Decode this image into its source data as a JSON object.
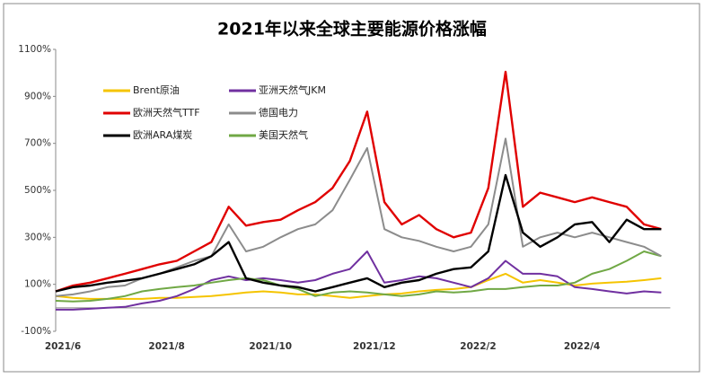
{
  "chart_data": {
    "type": "line",
    "title": "2021年以来全球主要能源价格涨幅",
    "categories": [
      "2021/6",
      null,
      null,
      null,
      null,
      null,
      "2021/8",
      null,
      null,
      null,
      null,
      null,
      "2021/10",
      null,
      null,
      null,
      null,
      null,
      "2021/12",
      null,
      null,
      null,
      null,
      null,
      "2022/2",
      null,
      null,
      null,
      null,
      null,
      "2022/4",
      null,
      null,
      null,
      null,
      null
    ],
    "ylim": [
      -100,
      1100
    ],
    "yticks": [
      {
        "value": -100,
        "label": "-100%"
      },
      {
        "value": 100,
        "label": "100%"
      },
      {
        "value": 300,
        "label": "300%"
      },
      {
        "value": 500,
        "label": "500%"
      },
      {
        "value": 700,
        "label": "700%"
      },
      {
        "value": 900,
        "label": "900%"
      },
      {
        "value": 1100,
        "label": "1100%"
      }
    ],
    "series": [
      {
        "name": "Brent原油",
        "color": "#f5c400",
        "values": [
          50,
          42,
          38,
          38,
          38,
          38,
          42,
          42,
          46,
          50,
          57,
          65,
          70,
          65,
          57,
          57,
          50,
          42,
          50,
          57,
          61,
          70,
          76,
          80,
          88,
          118,
          145,
          107,
          118,
          107,
          95,
          103,
          107,
          111,
          118,
          126
        ]
      },
      {
        "name": "亚洲天然气JKM",
        "color": "#7030a0",
        "values": [
          -8,
          -8,
          -4,
          0,
          4,
          19,
          30,
          50,
          80,
          118,
          134,
          118,
          126,
          118,
          107,
          118,
          145,
          165,
          240,
          107,
          118,
          134,
          126,
          107,
          88,
          126,
          200,
          145,
          145,
          134,
          88,
          80,
          70,
          61,
          70,
          65
        ]
      },
      {
        "name": "欧洲天然气TTF",
        "color": "#e00000",
        "values": [
          70,
          95,
          107,
          126,
          145,
          165,
          185,
          200,
          240,
          280,
          430,
          350,
          365,
          375,
          415,
          450,
          510,
          625,
          835,
          450,
          355,
          395,
          335,
          300,
          320,
          510,
          1005,
          430,
          490,
          470,
          450,
          470,
          450,
          430,
          355,
          335
        ]
      },
      {
        "name": "德国电力",
        "color": "#8c8c8c",
        "values": [
          50,
          57,
          70,
          88,
          95,
          126,
          145,
          172,
          200,
          220,
          355,
          240,
          260,
          300,
          335,
          355,
          415,
          545,
          680,
          335,
          300,
          285,
          260,
          240,
          260,
          355,
          720,
          260,
          300,
          320,
          300,
          320,
          300,
          280,
          260,
          220
        ]
      },
      {
        "name": "欧洲ARA煤炭",
        "color": "#000000",
        "values": [
          70,
          88,
          95,
          107,
          115,
          126,
          145,
          165,
          185,
          220,
          280,
          126,
          107,
          95,
          88,
          70,
          88,
          107,
          126,
          88,
          107,
          118,
          145,
          165,
          172,
          240,
          565,
          320,
          260,
          300,
          355,
          365,
          280,
          375,
          335,
          335
        ]
      },
      {
        "name": "美国天然气",
        "color": "#70a845",
        "values": [
          30,
          27,
          30,
          38,
          50,
          70,
          80,
          88,
          95,
          107,
          118,
          126,
          118,
          95,
          80,
          50,
          65,
          70,
          65,
          57,
          50,
          57,
          70,
          65,
          70,
          80,
          80,
          88,
          95,
          95,
          107,
          145,
          165,
          200,
          240,
          220
        ]
      }
    ]
  }
}
